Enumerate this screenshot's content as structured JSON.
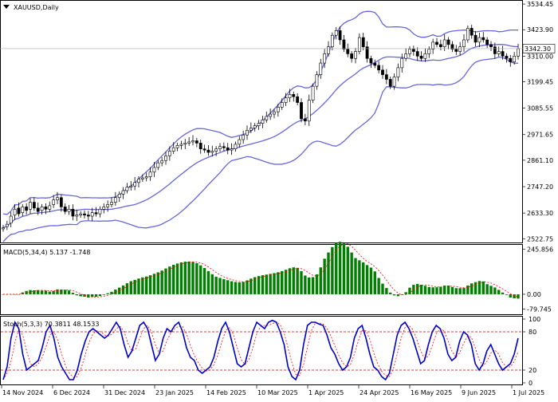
{
  "chart_data": [
    {
      "type": "candlestick",
      "title": "XAUUSD,Daily",
      "last_price_label": "3342.30",
      "y_ticks": [
        "3534.45",
        "3423.90",
        "3310.00",
        "3199.45",
        "3085.55",
        "2971.65",
        "2861.10",
        "2747.20",
        "2633.30",
        "2522.75"
      ],
      "ylim": [
        2510,
        3545
      ],
      "last_price": 3342.3,
      "x_labels": [
        "14 Nov 2024",
        "6 Dec 2024",
        "31 Dec 2024",
        "23 Jan 2025",
        "14 Feb 2025",
        "10 Mar 2025",
        "1 Apr 2025",
        "24 Apr 2025",
        "16 May 2025",
        "9 Jun 2025",
        "1 Jul 2025"
      ],
      "overlays": [
        "Bollinger Bands",
        "Moving Average"
      ],
      "colors": {
        "bull": "#ffffff",
        "bear": "#000000",
        "bands": "#6666dd",
        "wick": "#000000"
      },
      "close": [
        2570,
        2585,
        2620,
        2650,
        2630,
        2660,
        2645,
        2680,
        2655,
        2640,
        2660,
        2650,
        2665,
        2690,
        2700,
        2660,
        2640,
        2650,
        2620,
        2625,
        2630,
        2625,
        2620,
        2635,
        2630,
        2650,
        2660,
        2670,
        2680,
        2700,
        2715,
        2730,
        2745,
        2750,
        2765,
        2780,
        2785,
        2790,
        2810,
        2830,
        2850,
        2860,
        2880,
        2900,
        2915,
        2925,
        2930,
        2935,
        2940,
        2945,
        2935,
        2910,
        2905,
        2895,
        2900,
        2910,
        2920,
        2915,
        2905,
        2910,
        2930,
        2950,
        2970,
        2990,
        3000,
        3010,
        3020,
        3035,
        3050,
        3060,
        3070,
        3090,
        3110,
        3130,
        3145,
        3135,
        3110,
        3040,
        3030,
        3120,
        3180,
        3230,
        3280,
        3320,
        3350,
        3400,
        3420,
        3380,
        3340,
        3320,
        3300,
        3330,
        3390,
        3350,
        3300,
        3280,
        3270,
        3250,
        3230,
        3210,
        3180,
        3220,
        3260,
        3300,
        3320,
        3340,
        3330,
        3310,
        3300,
        3320,
        3340,
        3370,
        3360,
        3350,
        3380,
        3360,
        3340,
        3330,
        3350,
        3380,
        3430,
        3400,
        3370,
        3390,
        3380,
        3360,
        3350,
        3320,
        3330,
        3310,
        3300,
        3285,
        3310,
        3342
      ],
      "open": [
        2565,
        2575,
        2590,
        2625,
        2655,
        2635,
        2660,
        2650,
        2680,
        2655,
        2645,
        2660,
        2650,
        2670,
        2690,
        2700,
        2660,
        2640,
        2650,
        2620,
        2625,
        2630,
        2625,
        2620,
        2635,
        2630,
        2650,
        2660,
        2670,
        2680,
        2700,
        2715,
        2730,
        2745,
        2750,
        2765,
        2780,
        2785,
        2790,
        2810,
        2830,
        2850,
        2860,
        2880,
        2900,
        2915,
        2925,
        2930,
        2935,
        2940,
        2945,
        2935,
        2910,
        2905,
        2895,
        2900,
        2910,
        2920,
        2915,
        2905,
        2910,
        2930,
        2950,
        2970,
        2990,
        3000,
        3010,
        3020,
        3035,
        3050,
        3060,
        3070,
        3090,
        3110,
        3130,
        3145,
        3135,
        3110,
        3040,
        3030,
        3120,
        3180,
        3230,
        3280,
        3320,
        3350,
        3400,
        3420,
        3380,
        3340,
        3320,
        3300,
        3330,
        3390,
        3350,
        3300,
        3280,
        3270,
        3250,
        3230,
        3210,
        3180,
        3220,
        3260,
        3300,
        3320,
        3340,
        3330,
        3310,
        3300,
        3320,
        3340,
        3370,
        3360,
        3350,
        3380,
        3360,
        3340,
        3330,
        3350,
        3380,
        3430,
        3400,
        3370,
        3390,
        3380,
        3360,
        3350,
        3320,
        3330,
        3310,
        3300,
        3285,
        3310
      ]
    },
    {
      "type": "bar",
      "title": "MACD(5,34,4) 5.137 -1.748",
      "y_ticks": [
        "245.856",
        "0.00",
        "-79.745"
      ],
      "ylim": [
        -100,
        260
      ],
      "colors": {
        "histogram": "#008000",
        "signal": "#ff0000"
      }
    },
    {
      "type": "line",
      "title": "Stoch(5,3,3) 70.3811 48.1533",
      "y_ticks": [
        "100",
        "80",
        "20",
        "0"
      ],
      "ylim": [
        0,
        100
      ],
      "levels": [
        20,
        80
      ],
      "colors": {
        "main": "#0000cc",
        "signal": "#ff0000"
      },
      "k": [
        5,
        25,
        70,
        95,
        85,
        45,
        20,
        25,
        30,
        35,
        55,
        80,
        90,
        70,
        40,
        25,
        15,
        5,
        5,
        20,
        45,
        65,
        80,
        85,
        80,
        75,
        70,
        75,
        85,
        95,
        85,
        60,
        40,
        50,
        70,
        90,
        95,
        85,
        60,
        35,
        45,
        70,
        85,
        80,
        90,
        95,
        80,
        55,
        40,
        35,
        20,
        15,
        20,
        25,
        40,
        65,
        85,
        95,
        80,
        55,
        30,
        25,
        30,
        55,
        80,
        95,
        90,
        85,
        95,
        98,
        95,
        80,
        60,
        25,
        10,
        5,
        20,
        60,
        90,
        95,
        95,
        92,
        90,
        75,
        55,
        45,
        30,
        20,
        25,
        40,
        70,
        85,
        90,
        70,
        45,
        25,
        20,
        10,
        5,
        15,
        45,
        75,
        90,
        95,
        85,
        70,
        50,
        30,
        35,
        60,
        80,
        90,
        85,
        70,
        45,
        35,
        40,
        65,
        80,
        75,
        60,
        30,
        20,
        30,
        50,
        60,
        45,
        30,
        20,
        25,
        30,
        45,
        70
      ]
    }
  ]
}
